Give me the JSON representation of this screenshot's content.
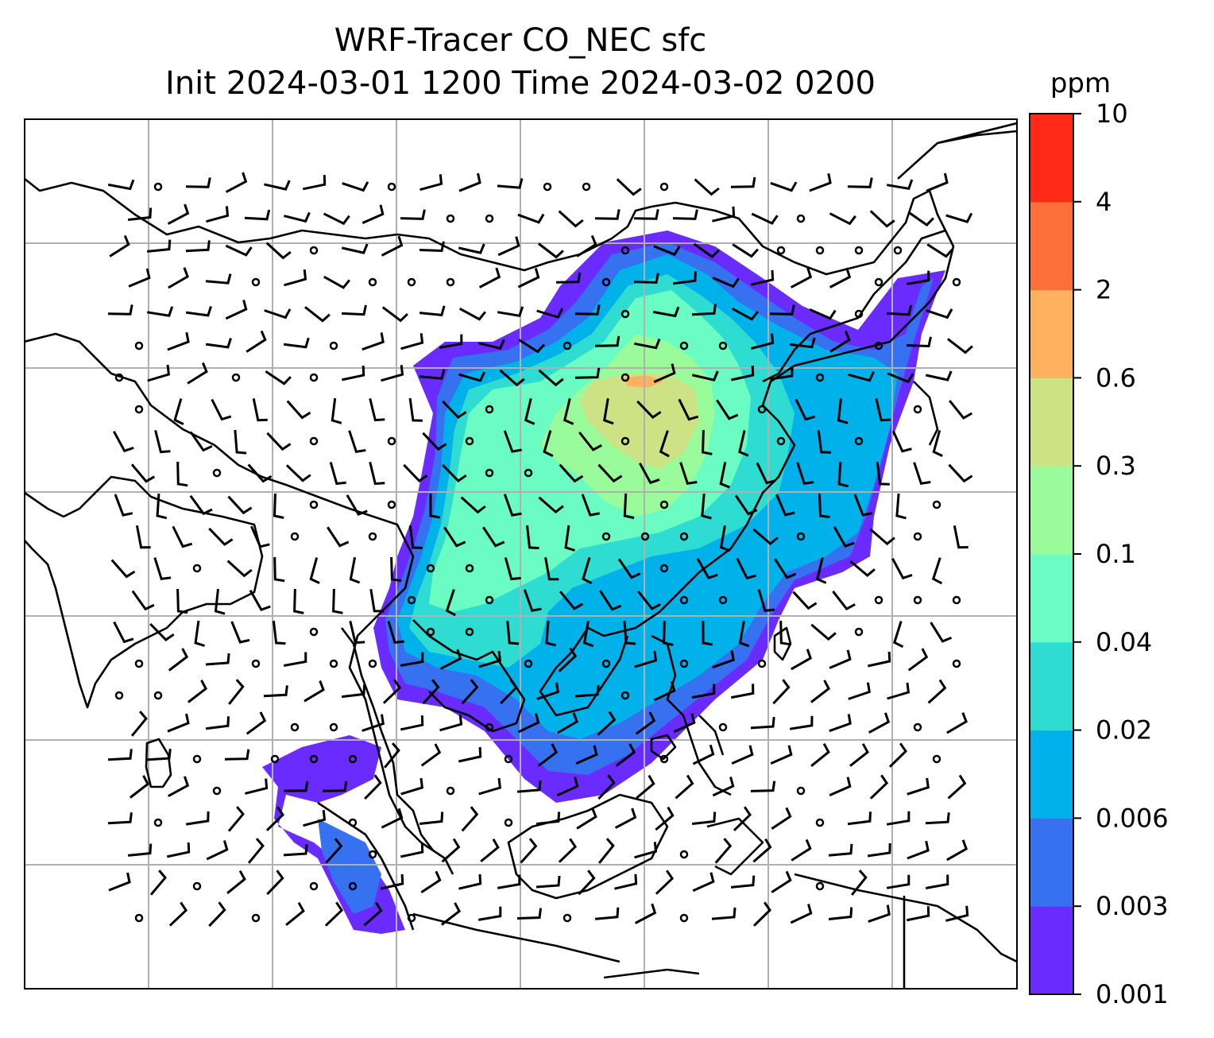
{
  "title": {
    "line1": "WRF-Tracer CO_NEC sfc",
    "line2": "Init 2024-03-01 1200 Time 2024-03-02 0200"
  },
  "colorbar": {
    "unit": "ppm",
    "levels": [
      "0.001",
      "0.003",
      "0.006",
      "0.02",
      "0.04",
      "0.1",
      "0.3",
      "0.6",
      "2",
      "4",
      "10"
    ],
    "colors": [
      "#6a2bff",
      "#3671f0",
      "#00b1ea",
      "#2fdcd2",
      "#6afcc3",
      "#9afb9a",
      "#cde185",
      "#ffb160",
      "#ff6f3a",
      "#ff2a17"
    ]
  },
  "map": {
    "gridlines": true,
    "coastline_color": "#000000",
    "grid_color": "#b0b0b0",
    "wind_barbs": true
  }
}
